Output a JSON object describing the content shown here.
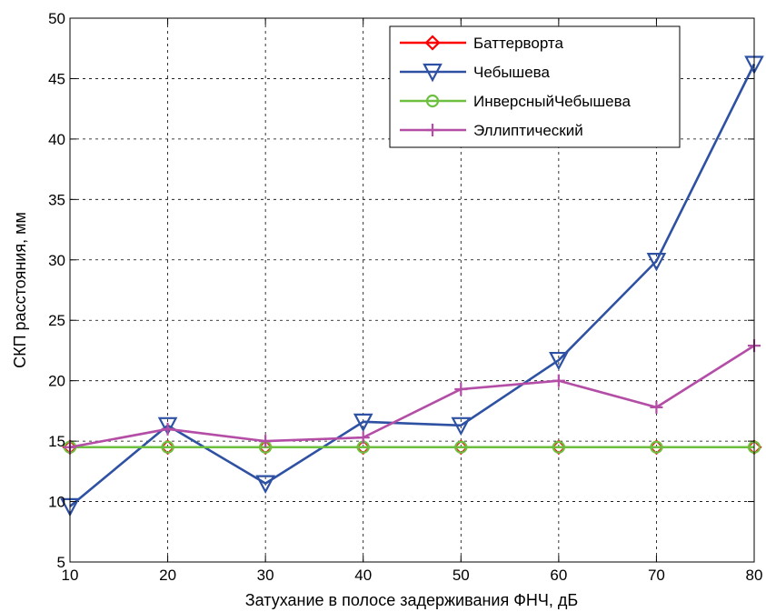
{
  "chart_data": {
    "type": "line",
    "title": "",
    "xlabel": "Затухание в полосе задерживания ФНЧ, дБ",
    "ylabel": "СКП расстояния, мм",
    "xlim": [
      10,
      80
    ],
    "ylim": [
      5,
      50
    ],
    "xticks": [
      10,
      20,
      30,
      40,
      50,
      60,
      70,
      80
    ],
    "yticks": [
      5,
      10,
      15,
      20,
      25,
      30,
      35,
      40,
      45,
      50
    ],
    "grid": true,
    "legend_position": "top-right",
    "x": [
      10,
      20,
      30,
      40,
      50,
      60,
      70,
      80
    ],
    "series": [
      {
        "name": "Баттерворта",
        "color": "#ff0000",
        "marker": "diamond",
        "values": [
          14.5,
          14.5,
          14.5,
          14.5,
          14.5,
          14.5,
          14.5,
          14.5
        ]
      },
      {
        "name": "Чебышева",
        "color": "#2e51a3",
        "marker": "triangle-down",
        "values": [
          9.6,
          16.3,
          11.5,
          16.6,
          16.3,
          21.7,
          29.9,
          46.2
        ]
      },
      {
        "name": "ИнверсныйЧебышева",
        "color": "#6dbf3f",
        "marker": "circle",
        "values": [
          14.5,
          14.5,
          14.5,
          14.5,
          14.5,
          14.5,
          14.5,
          14.5
        ]
      },
      {
        "name": "Эллиптический",
        "color": "#b44da6",
        "marker": "plus",
        "values": [
          14.5,
          16.0,
          15.0,
          15.3,
          19.3,
          20.0,
          17.8,
          22.9
        ]
      }
    ]
  }
}
